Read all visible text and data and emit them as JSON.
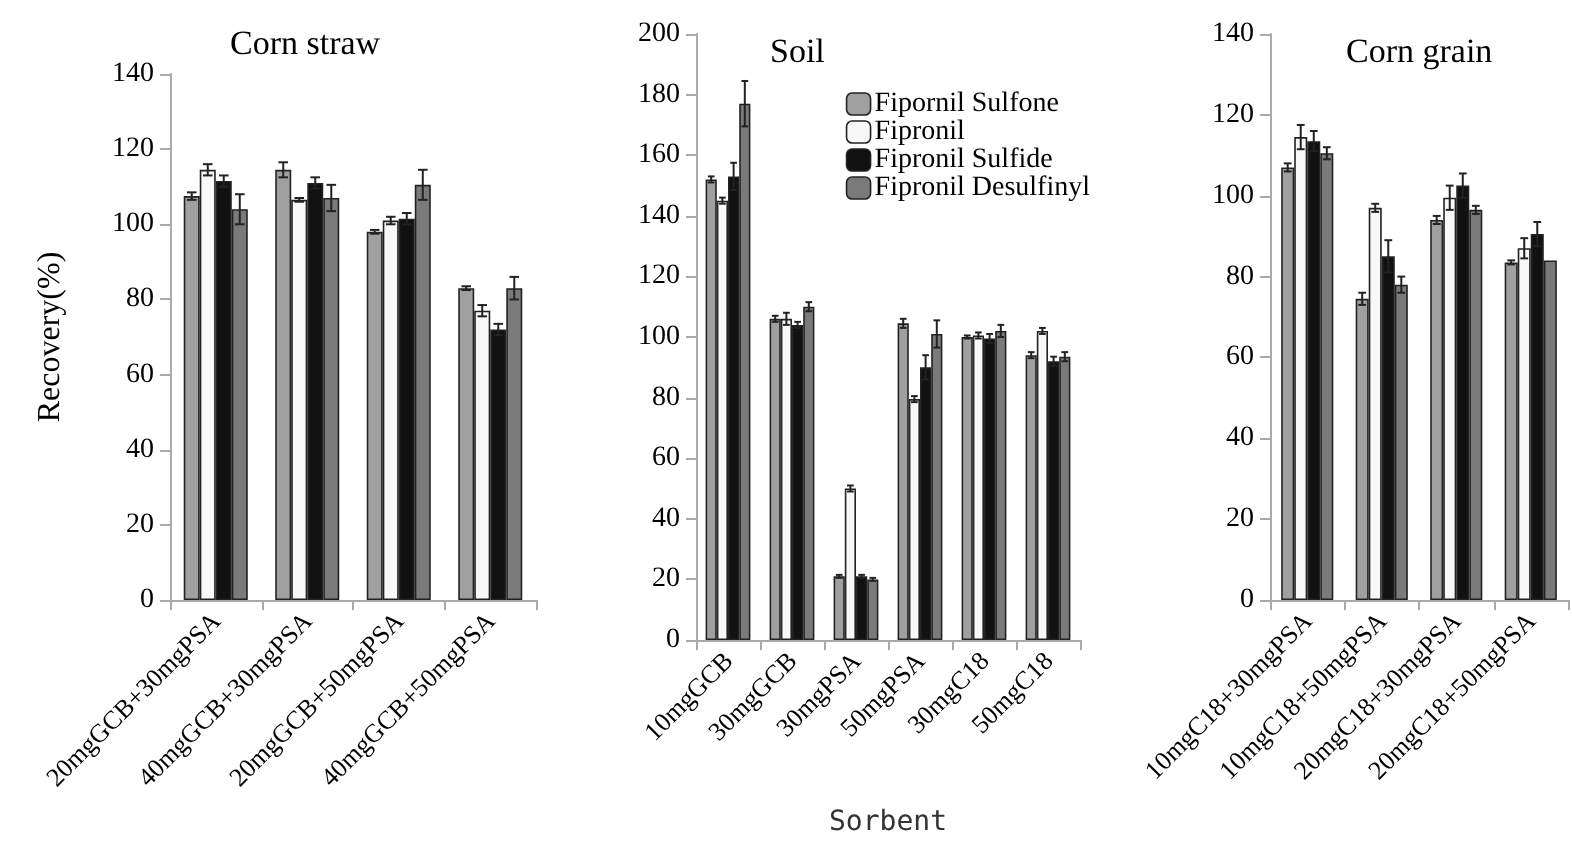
{
  "chart_data": [
    {
      "type": "bar",
      "title": "Corn straw",
      "ylabel": "Recovery(%)",
      "categories": [
        "20mgGCB+30mgPSA",
        "40mgGCB+30mgPSA",
        "20mgGCB+50mgPSA",
        "40mgGCB+50mgPSA"
      ],
      "ylim": [
        0,
        140
      ],
      "yticks": [
        0,
        20,
        40,
        60,
        80,
        100,
        120,
        140
      ],
      "grid": false,
      "legend": false,
      "series": [
        {
          "color": "#a0a0a0",
          "values": [
            107.5,
            114.5,
            98,
            83
          ],
          "errors": [
            1,
            2,
            0.5,
            0.5
          ]
        },
        {
          "color": "#f8f8f8",
          "values": [
            114.5,
            106.5,
            101,
            77
          ],
          "errors": [
            1.5,
            0.5,
            1,
            1.5
          ]
        },
        {
          "color": "#111111",
          "values": [
            111.5,
            111,
            101.5,
            72
          ],
          "errors": [
            1.5,
            1.5,
            1.5,
            1.5
          ]
        },
        {
          "color": "#7a7a7a",
          "values": [
            104,
            107,
            110.5,
            83
          ],
          "errors": [
            4,
            3.5,
            4,
            3
          ]
        }
      ]
    },
    {
      "type": "bar",
      "title": "Soil",
      "xlabel": "Sorbent",
      "categories": [
        "10mgGCB",
        "30mgGCB",
        "30mgPSA",
        "50mgPSA",
        "30mgC18",
        "50mgC18"
      ],
      "ylim": [
        0,
        200
      ],
      "yticks": [
        0,
        20,
        40,
        60,
        80,
        100,
        120,
        140,
        160,
        180,
        200
      ],
      "grid": false,
      "legend": "top right",
      "series": [
        {
          "name": "Fipornil Sulfone",
          "color": "#a0a0a0",
          "values": [
            152,
            106,
            21,
            104.5,
            100,
            94
          ],
          "errors": [
            1,
            1,
            0.5,
            1.5,
            0.5,
            1
          ]
        },
        {
          "name": "Fipronil",
          "color": "#f8f8f8",
          "values": [
            145,
            106,
            50,
            79.5,
            100.5,
            102
          ],
          "errors": [
            1,
            2,
            1,
            1,
            1,
            1
          ]
        },
        {
          "name": "Fipronil Sulfide",
          "color": "#111111",
          "values": [
            153,
            104,
            21,
            90,
            99.5,
            92
          ],
          "errors": [
            4.5,
            1,
            0.5,
            4,
            1.5,
            1.5
          ]
        },
        {
          "name": "Fipronil Desulfinyl",
          "color": "#7a7a7a",
          "values": [
            177,
            110,
            20,
            101,
            102,
            93.5
          ],
          "errors": [
            7.5,
            1.5,
            0.5,
            4.5,
            2,
            1.5
          ]
        }
      ]
    },
    {
      "type": "bar",
      "title": "Corn grain",
      "categories": [
        "10mgC18+30mgPSA",
        "10mgC18+50mgPSA",
        "20mgC18+30mgPSA",
        "20mgC18+50mgPSA"
      ],
      "ylim": [
        0,
        140
      ],
      "yticks": [
        0,
        20,
        40,
        60,
        80,
        100,
        120,
        140
      ],
      "grid": false,
      "legend": false,
      "series": [
        {
          "color": "#a0a0a0",
          "values": [
            107,
            74.5,
            94,
            83.5
          ],
          "errors": [
            1,
            1.5,
            1,
            0.5
          ]
        },
        {
          "color": "#f8f8f8",
          "values": [
            114.5,
            97,
            99.5,
            87
          ],
          "errors": [
            3,
            1,
            3,
            2.5
          ]
        },
        {
          "color": "#111111",
          "values": [
            113.5,
            85,
            102.5,
            90.5
          ],
          "errors": [
            2.5,
            4,
            3,
            3
          ]
        },
        {
          "color": "#7a7a7a",
          "values": [
            110.5,
            78,
            96.5,
            84
          ],
          "errors": [
            1.5,
            2,
            1,
            null
          ]
        }
      ]
    }
  ]
}
